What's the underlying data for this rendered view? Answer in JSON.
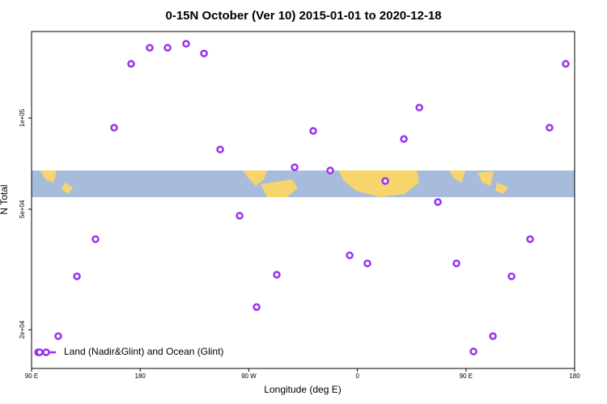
{
  "chart_data": {
    "type": "scatter",
    "title": "0-15N October (Ver 10)   2015-01-01 to 2020-12-18",
    "x_label": "Longitude (deg E)",
    "y_label": "N Total",
    "xlim": [
      90,
      540
    ],
    "xticks": [
      {
        "value": 90,
        "label": "90 E"
      },
      {
        "value": 180,
        "label": "180"
      },
      {
        "value": 270,
        "label": "90 W"
      },
      {
        "value": 360,
        "label": "0"
      },
      {
        "value": 450,
        "label": "90 E"
      },
      {
        "value": 540,
        "label": "180"
      }
    ],
    "ylim": [
      14900,
      193000
    ],
    "yticks": [
      {
        "value": 100000,
        "label": "1e+05"
      },
      {
        "value": 50000,
        "label": "5e+04"
      },
      {
        "value": 20000,
        "label": "2e+04"
      }
    ],
    "log_y": true,
    "grid": false,
    "legend": "bottomleft",
    "series": [
      {
        "name": "Land (Nadir&Glint) and Ocean (Glint)",
        "color": "#9b30f0",
        "x": [
          95.4,
          112.1,
          127.6,
          143.0,
          158.4,
          172.5,
          187.9,
          202.7,
          218.1,
          232.9,
          246.3,
          262.4,
          276.5,
          293.2,
          308.0,
          323.4,
          337.5,
          353.6,
          368.3,
          383.1,
          398.5,
          411.3,
          426.7,
          442.1,
          456.2,
          472.3,
          487.7,
          503.1,
          519.2,
          532.6
        ],
        "values": [
          16850,
          19050,
          30010,
          39810,
          92900,
          150900,
          170600,
          170600,
          175900,
          163400,
          78700,
          47560,
          23770,
          30380,
          68780,
          90650,
          67100,
          35210,
          33110,
          61940,
          85240,
          108300,
          52800,
          33110,
          16950,
          19050,
          30010,
          39810,
          92900,
          150900
        ]
      }
    ]
  }
}
